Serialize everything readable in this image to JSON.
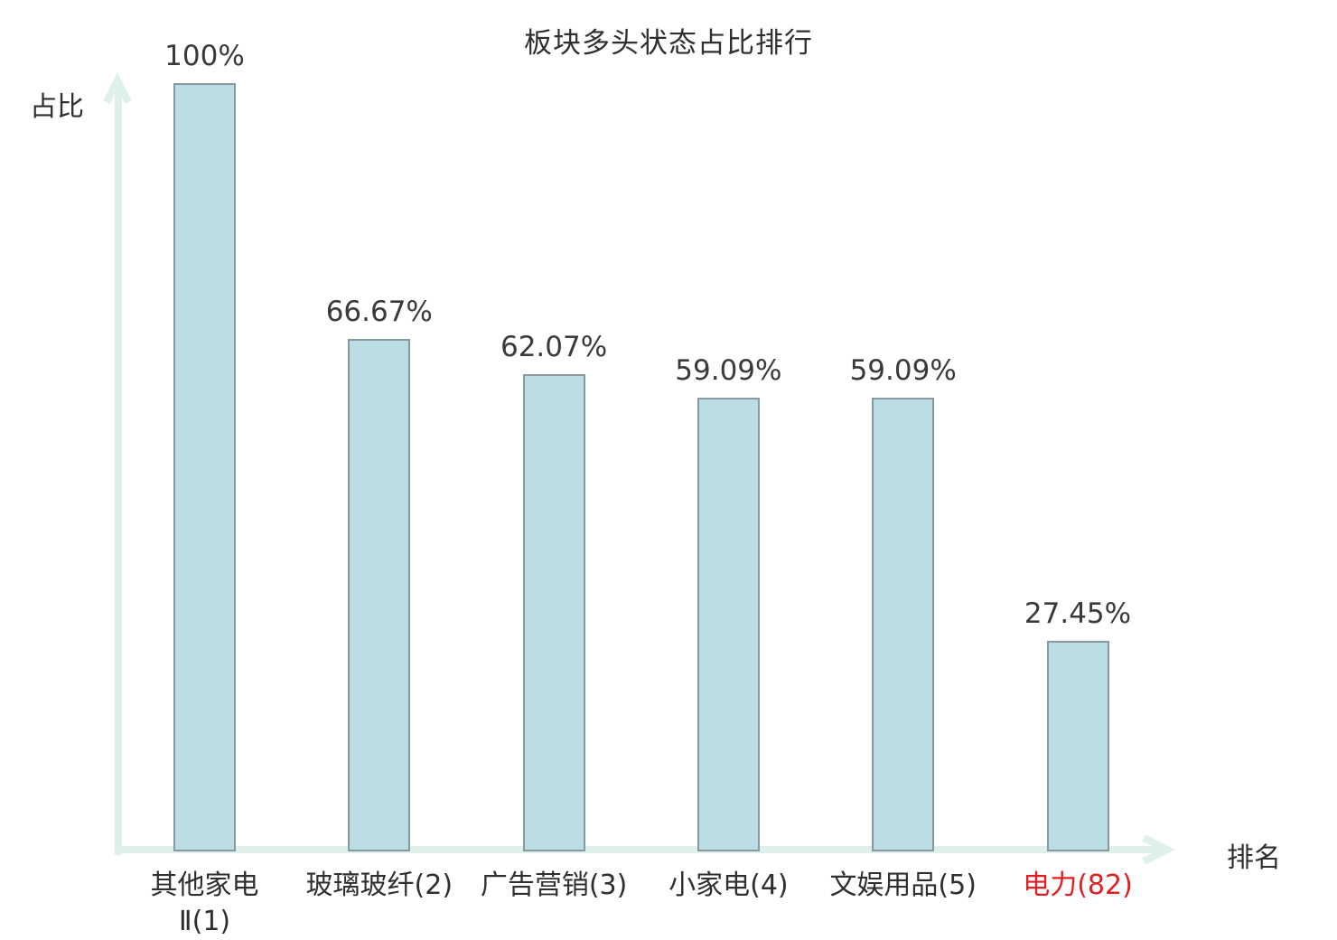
{
  "chart_data": {
    "type": "bar",
    "title": "板块多头状态占比排行",
    "ylabel": "占比",
    "xlabel": "排名",
    "categories": [
      "其他家电Ⅱ(1)",
      "玻璃玻纤(2)",
      "广告营销(3)",
      "小家电(4)",
      "文娱用品(5)",
      "电力(82)"
    ],
    "category_lines": [
      [
        "其他家电",
        "Ⅱ(1)"
      ],
      [
        "玻璃玻纤(2)"
      ],
      [
        "广告营销(3)"
      ],
      [
        "小家电(4)"
      ],
      [
        "文娱用品(5)"
      ],
      [
        "电力(82)"
      ]
    ],
    "values": [
      100,
      66.67,
      62.07,
      59.09,
      59.09,
      27.45
    ],
    "value_labels": [
      "100%",
      "66.67%",
      "62.07%",
      "59.09%",
      "59.09%",
      "27.45%"
    ],
    "highlight_index": 5,
    "ylim": [
      0,
      100
    ],
    "grid": false,
    "legend": false,
    "colors": {
      "bar_fill": "#b9dde2",
      "bar_border": "#87999e",
      "axis": "#dff0ec",
      "text": "#2f2f2f",
      "value_text": "#3a3a3a",
      "highlight_text": "#e02020"
    }
  }
}
